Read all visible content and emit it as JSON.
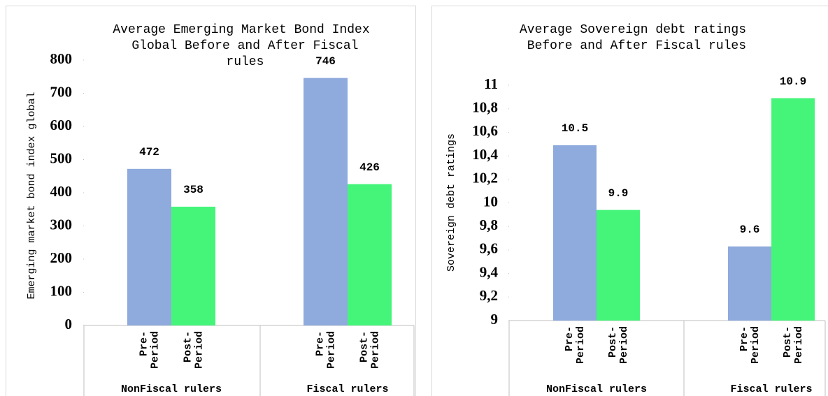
{
  "chart_data": [
    {
      "type": "bar",
      "title": "Average Emerging Market Bond Index Global Before and After Fiscal rules",
      "y_label": "Emerging market bond index global",
      "groups": [
        "NonFiscal rulers",
        "Fiscal rulers"
      ],
      "series": [
        {
          "name": "Pre-Period",
          "color": "#8faadc",
          "values": [
            472,
            746
          ]
        },
        {
          "name": "Post-Period",
          "color": "#44f57a",
          "values": [
            358,
            426
          ]
        }
      ],
      "ylim": [
        0,
        800
      ],
      "yticks": [
        0,
        100,
        200,
        300,
        400,
        500,
        600,
        700,
        800
      ]
    },
    {
      "type": "bar",
      "title": "Average Sovereign debt ratings Before and After Fiscal rules",
      "y_label": "Sovereign debt ratings",
      "groups": [
        "NonFiscal rulers",
        "Fiscal rulers"
      ],
      "series": [
        {
          "name": "Pre-Period",
          "color": "#8faadc",
          "values": [
            10.49,
            9.63
          ],
          "value_labels": [
            "10.5",
            "9.6"
          ]
        },
        {
          "name": "Post-Period",
          "color": "#44f57a",
          "values": [
            9.94,
            10.89
          ],
          "value_labels": [
            "9.9",
            "10.9"
          ]
        }
      ],
      "ylim": [
        9,
        11
      ],
      "yticks": [
        9,
        {
          "value": 9.2,
          "label": "9,2"
        },
        {
          "value": 9.4,
          "label": "9,4"
        },
        {
          "value": 9.6,
          "label": "9,6"
        },
        {
          "value": 9.8,
          "label": "9,8"
        },
        10,
        {
          "value": 10.2,
          "label": "10,2"
        },
        {
          "value": 10.4,
          "label": "10,4"
        },
        {
          "value": 10.6,
          "label": "10,6"
        },
        {
          "value": 10.8,
          "label": "10,8"
        },
        11
      ]
    }
  ]
}
